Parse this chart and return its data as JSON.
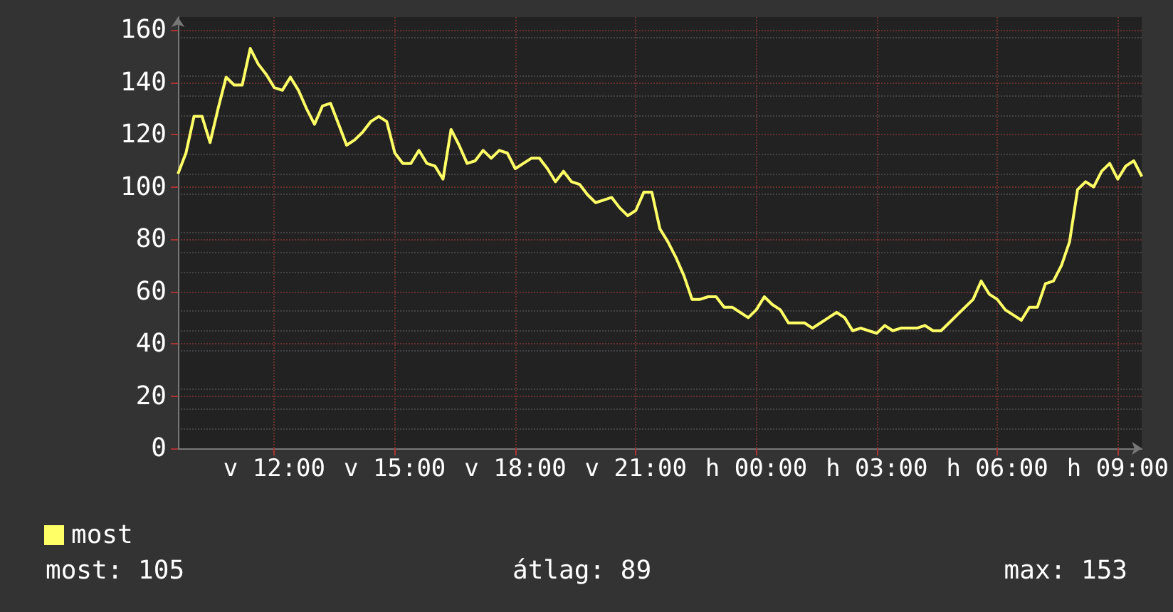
{
  "chart_data": {
    "type": "line",
    "line_style": "solid",
    "marker": "none",
    "grid": true,
    "legend": "bottom left",
    "categories": [
      null,
      null,
      null,
      null,
      null,
      null,
      null,
      null,
      null,
      null,
      null,
      null,
      "v 12:00",
      null,
      null,
      null,
      null,
      null,
      null,
      null,
      null,
      null,
      null,
      null,
      null,
      null,
      null,
      "v 15:00",
      null,
      null,
      null,
      null,
      null,
      null,
      null,
      null,
      null,
      null,
      null,
      null,
      null,
      null,
      "v 18:00",
      null,
      null,
      null,
      null,
      null,
      null,
      null,
      null,
      null,
      null,
      null,
      null,
      null,
      null,
      "v 21:00",
      null,
      null,
      null,
      null,
      null,
      null,
      null,
      null,
      null,
      null,
      null,
      null,
      null,
      null,
      "h 00:00",
      null,
      null,
      null,
      null,
      null,
      null,
      null,
      null,
      null,
      null,
      null,
      null,
      null,
      null,
      "h 03:00",
      null,
      null,
      null,
      null,
      null,
      null,
      null,
      null,
      null,
      null,
      null,
      null,
      null,
      null,
      "h 06:00",
      null,
      null,
      null,
      null,
      null,
      null,
      null,
      null,
      null,
      null,
      null,
      null,
      null,
      null,
      "h 09:00",
      null,
      null,
      null
    ],
    "ylim": [
      0,
      165
    ],
    "yticks": [
      0,
      20,
      40,
      60,
      80,
      100,
      120,
      140,
      160
    ],
    "annotations": [
      "most: 105",
      "átlag: 89",
      "max: 153"
    ],
    "series": [
      {
        "name": "most",
        "color": "#ffff66",
        "values": [
          105,
          113,
          127,
          127,
          117,
          130,
          142,
          139,
          139,
          153,
          147,
          143,
          138,
          137,
          142,
          137,
          130,
          124,
          131,
          132,
          124,
          116,
          118,
          121,
          125,
          127,
          125,
          113,
          109,
          109,
          114,
          109,
          108,
          103,
          122,
          116,
          109,
          110,
          114,
          111,
          114,
          113,
          107,
          109,
          111,
          111,
          107,
          102,
          106,
          102,
          101,
          97,
          94,
          95,
          96,
          92,
          89,
          91,
          98,
          98,
          84,
          79,
          73,
          66,
          57,
          57,
          58,
          58,
          54,
          54,
          52,
          50,
          53,
          58,
          55,
          53,
          48,
          48,
          48,
          46,
          48,
          50,
          52,
          50,
          45,
          46,
          45,
          44,
          47,
          45,
          46,
          46,
          46,
          47,
          45,
          45,
          48,
          51,
          54,
          57,
          64,
          59,
          57,
          53,
          51,
          49,
          54,
          54,
          63,
          64,
          70,
          79,
          99,
          102,
          100,
          106,
          109,
          103,
          108,
          110,
          104
        ]
      }
    ]
  }
}
